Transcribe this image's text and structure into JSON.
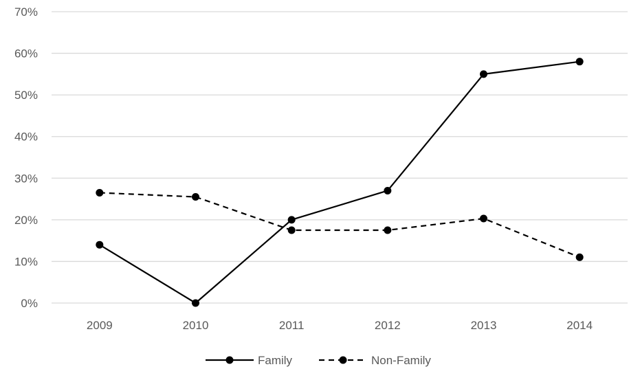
{
  "chart_data": {
    "type": "line",
    "categories": [
      "2009",
      "2010",
      "2011",
      "2012",
      "2013",
      "2014"
    ],
    "series": [
      {
        "name": "Family",
        "values": [
          0.14,
          0.0,
          0.2,
          0.27,
          0.55,
          0.58
        ],
        "line_style": "solid"
      },
      {
        "name": "Non-Family",
        "values": [
          0.265,
          0.255,
          0.175,
          0.175,
          0.203,
          0.11
        ],
        "line_style": "dashed"
      }
    ],
    "y_ticks": [
      "0%",
      "10%",
      "20%",
      "30%",
      "40%",
      "50%",
      "60%",
      "70%"
    ],
    "ylim": [
      0,
      0.7
    ],
    "grid": true,
    "legend_position": "bottom",
    "colors": {
      "series": "#000000",
      "grid": "#d9d9d9",
      "text": "#595959"
    }
  }
}
